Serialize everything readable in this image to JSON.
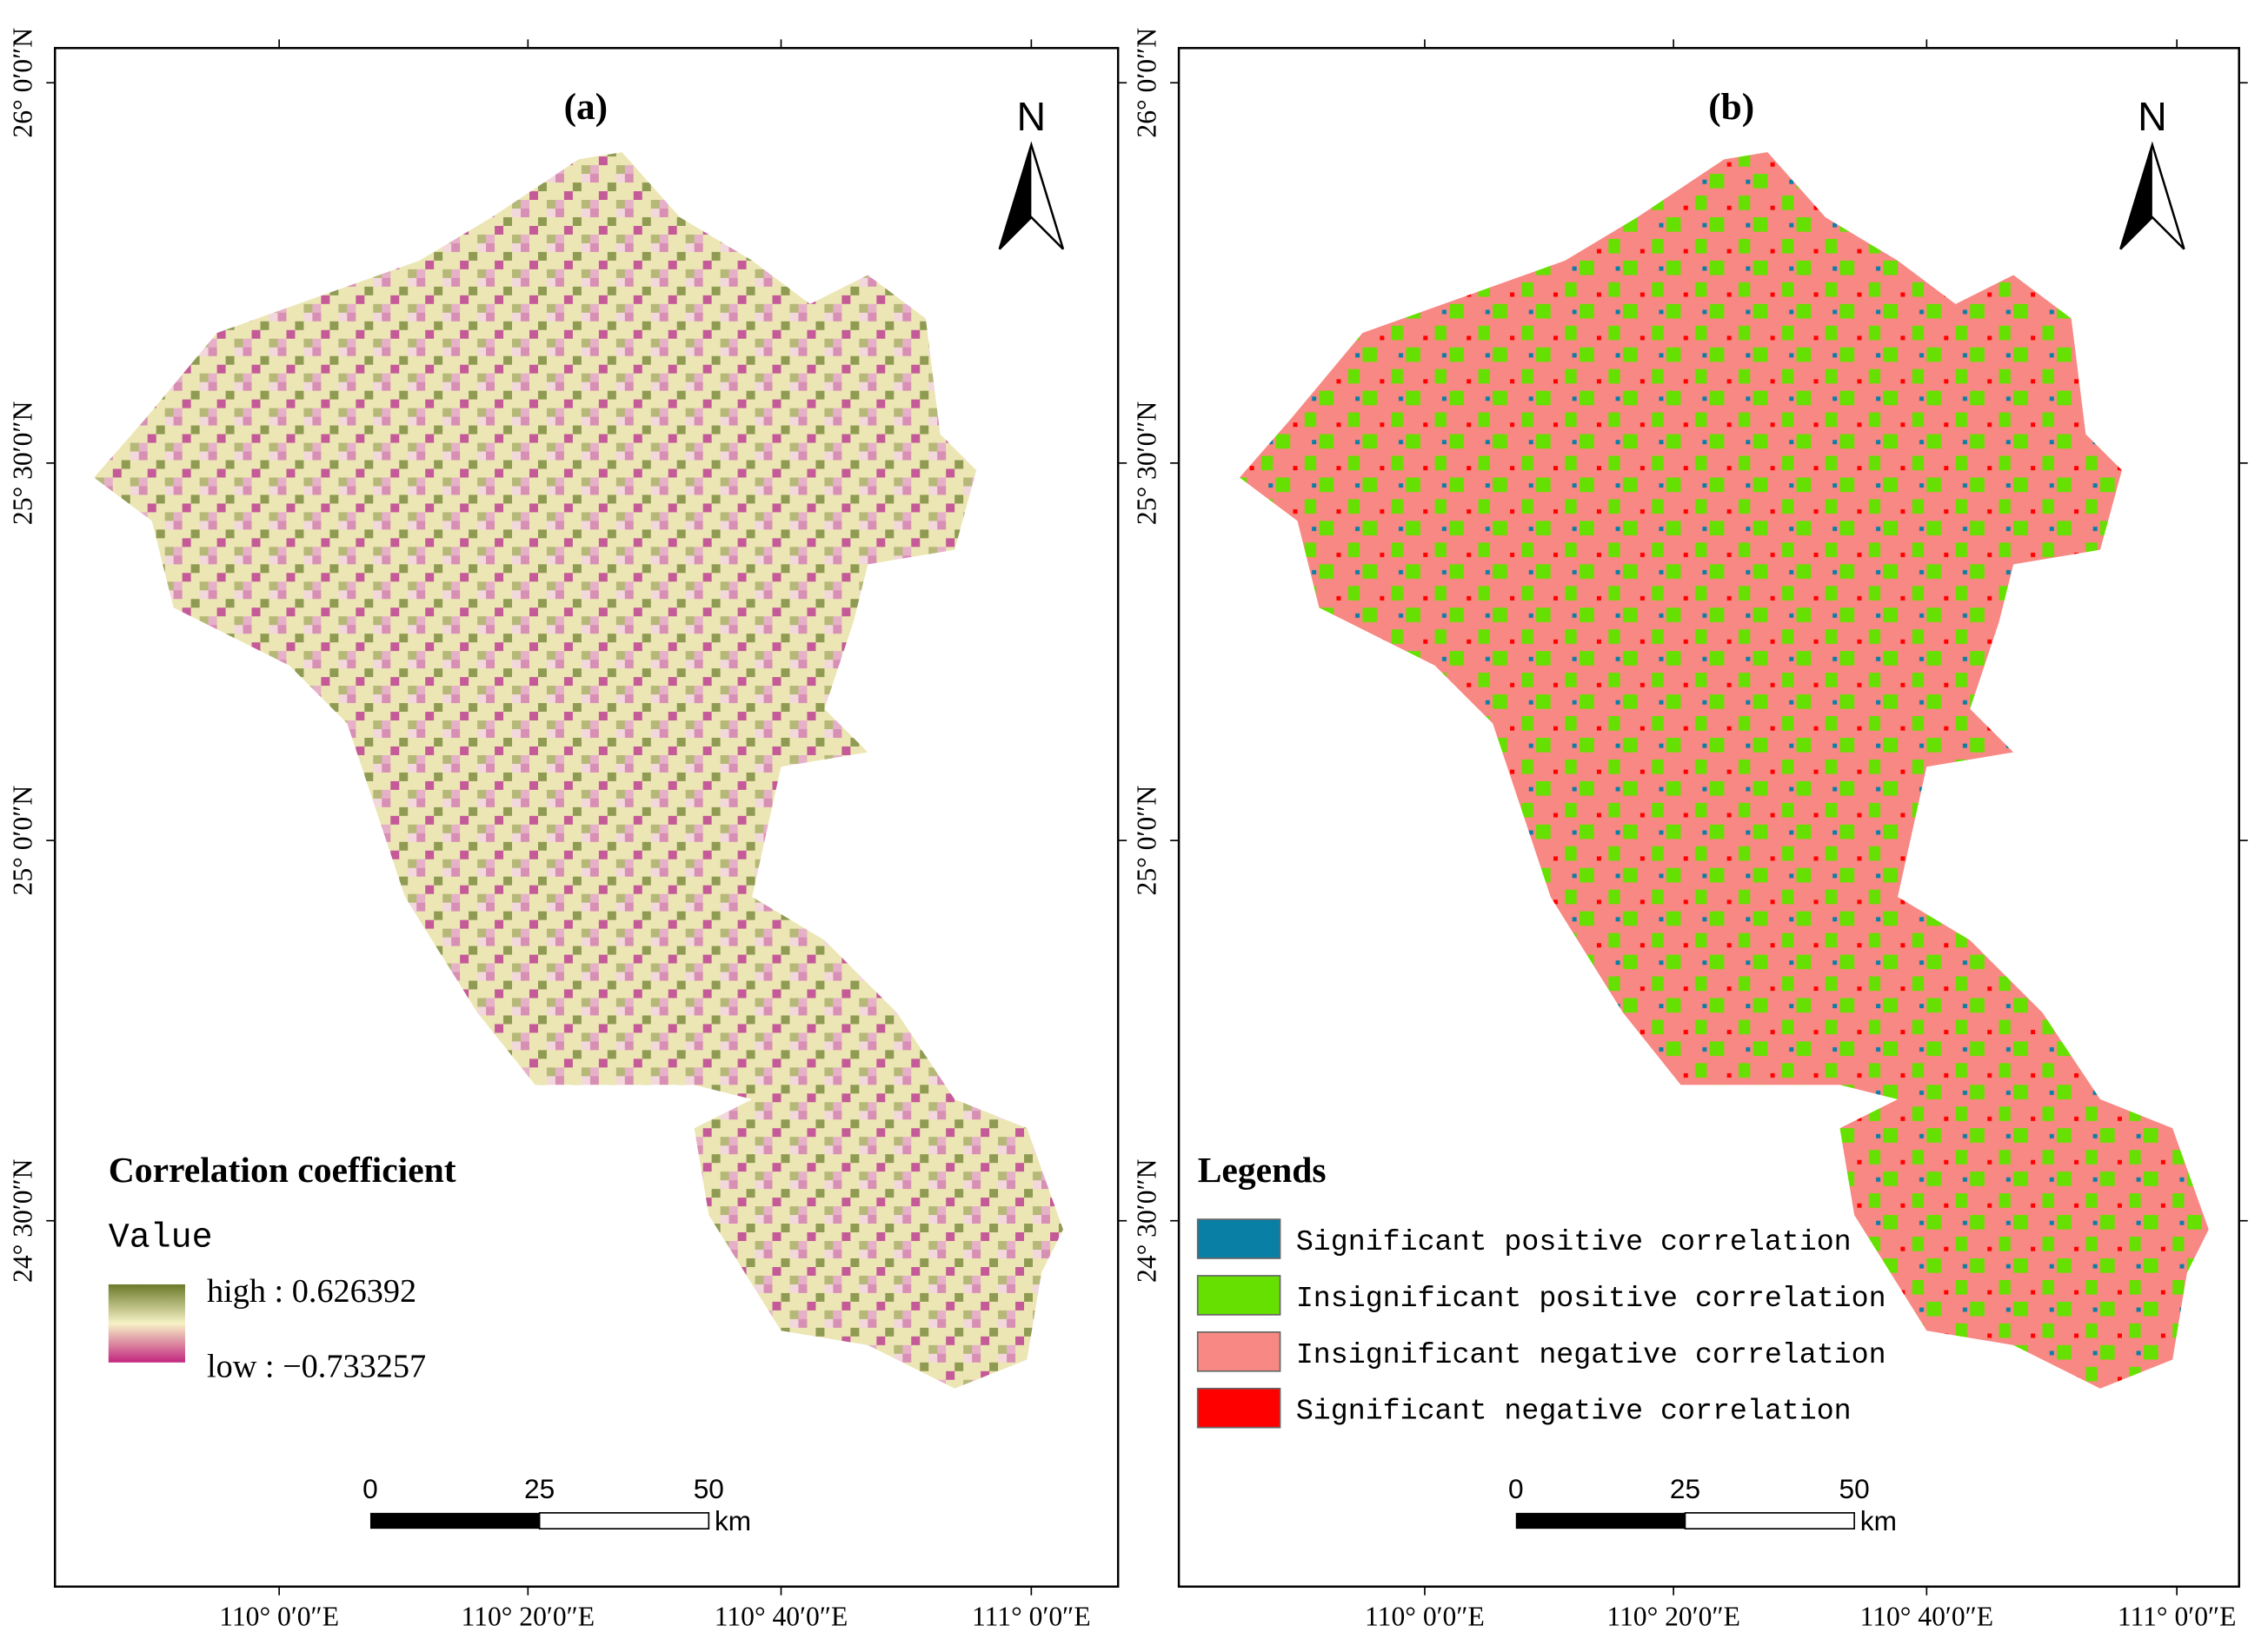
{
  "panels": [
    {
      "label": "(a)",
      "north": "N",
      "lat_labels": [
        "26° 0′0″N",
        "25° 30′0″N",
        "25° 0′0″N",
        "24° 30′0″N"
      ],
      "lon_labels": [
        "110° 0′0″E",
        "110° 20′0″E",
        "110° 40′0″E",
        "111° 0′0″E"
      ],
      "legend": {
        "title": "Correlation coefficient",
        "subtitle": "Value",
        "high": "high : 0.626392",
        "low": "low : −0.733257",
        "high_color": "#6b7a2a",
        "low_color": "#c2267f"
      },
      "scale": {
        "ticks": [
          "0",
          "25",
          "50"
        ],
        "unit": "km"
      }
    },
    {
      "label": "(b)",
      "north": "N",
      "lat_labels": [
        "26° 0′0″N",
        "25° 30′0″N",
        "25° 0′0″N",
        "24° 30′0″N"
      ],
      "lon_labels": [
        "110° 0′0″E",
        "110° 20′0″E",
        "110° 40′0″E",
        "111° 0′0″E"
      ],
      "legend": {
        "title": "Legends",
        "items": [
          {
            "label": "Significant positive correlation",
            "color": "#0a7fa6"
          },
          {
            "label": "Insignificant positive correlation",
            "color": "#66e000"
          },
          {
            "label": "Insignificant negative correlation",
            "color": "#f88883"
          },
          {
            "label": "Significant negative correlation",
            "color": "#ff0000"
          }
        ]
      },
      "scale": {
        "ticks": [
          "0",
          "25",
          "50"
        ],
        "unit": "km"
      }
    }
  ]
}
